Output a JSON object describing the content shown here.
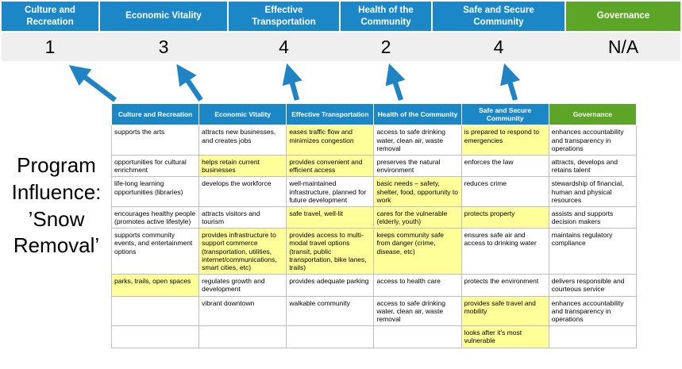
{
  "page": {
    "title": "Program Influence: ’Snow Removal’"
  },
  "summary": {
    "columns": [
      {
        "label": "Culture and Recreation",
        "score": "1"
      },
      {
        "label": "Economic Vitality",
        "score": "3"
      },
      {
        "label": "Effective Transportation",
        "score": "4"
      },
      {
        "label": "Health of the Community",
        "score": "2"
      },
      {
        "label": "Safe and Secure Community",
        "score": "4"
      },
      {
        "label": "Governance",
        "score": "N/A"
      }
    ]
  },
  "matrix": {
    "headers": [
      "Culture and Recreation",
      "Economic Vitality",
      "Effective Transportation",
      "Health of the Community",
      "Safe and Secure Community",
      "Governance"
    ],
    "rows": [
      [
        {
          "t": "supports the arts",
          "h": false
        },
        {
          "t": "attracts new businesses, and creates jobs",
          "h": false
        },
        {
          "t": "eases traffic flow and minimizes congestion",
          "h": true
        },
        {
          "t": "access to safe drinking water, clean air, waste removal",
          "h": false
        },
        {
          "t": "is prepared to respond to emergencies",
          "h": true
        },
        {
          "t": "enhances accountability and transparency in operations",
          "h": false
        }
      ],
      [
        {
          "t": "opportunities for cultural enrichment",
          "h": false
        },
        {
          "t": "helps retain current businesses",
          "h": true
        },
        {
          "t": "provides convenient and efficient access",
          "h": true
        },
        {
          "t": "preserves the natural environment",
          "h": false
        },
        {
          "t": "enforces the law",
          "h": false
        },
        {
          "t": "attracts, develops and retains talent",
          "h": false
        }
      ],
      [
        {
          "t": "life-long learning opportunities (libraries)",
          "h": false
        },
        {
          "t": "develops the workforce",
          "h": false
        },
        {
          "t": "well-maintained infrastructure, planned for future development",
          "h": false
        },
        {
          "t": "basic needs – safety, shelter, food, opportunity to work",
          "h": true
        },
        {
          "t": "reduces crime",
          "h": false
        },
        {
          "t": "stewardship of financial, human and physical resources",
          "h": false
        }
      ],
      [
        {
          "t": "encourages healthy people (promotes active lifestyle)",
          "h": false
        },
        {
          "t": "attracts visitors and tourism",
          "h": false
        },
        {
          "t": "safe travel, well-lit",
          "h": true
        },
        {
          "t": "cares for the vulnerable (elderly, youth)",
          "h": true
        },
        {
          "t": "protects property",
          "h": true
        },
        {
          "t": "assists and supports decision makers",
          "h": false
        }
      ],
      [
        {
          "t": "supports community events, and entertainment options",
          "h": false
        },
        {
          "t": "provides infrastructure to support commerce (transportation, utilities, internet/communications, smart cities, etc)",
          "h": true
        },
        {
          "t": "provides access to multi-modal travel options (transit, public transportation, bike lanes, trails)",
          "h": true
        },
        {
          "t": "keeps community safe from danger (crime, disease, etc)",
          "h": true
        },
        {
          "t": "ensures safe air and access to drinking water",
          "h": false
        },
        {
          "t": "maintains regulatory compliance",
          "h": false
        }
      ],
      [
        {
          "t": "parks, trails, open spaces",
          "h": true
        },
        {
          "t": "regulates growth and development",
          "h": false
        },
        {
          "t": "provides adequate parking",
          "h": false
        },
        {
          "t": "access to health care",
          "h": false
        },
        {
          "t": "protects the environment",
          "h": false
        },
        {
          "t": "delivers responsible and courteous service",
          "h": false
        }
      ],
      [
        {
          "t": "",
          "h": false
        },
        {
          "t": "vibrant downtown",
          "h": false
        },
        {
          "t": "walkable community",
          "h": false
        },
        {
          "t": "access to safe drinking water, clean air, waste removal",
          "h": false
        },
        {
          "t": "provides safe travel and mobility",
          "h": true
        },
        {
          "t": "enhances accountability and transparency in operations",
          "h": false
        }
      ],
      [
        {
          "t": "",
          "h": false
        },
        {
          "t": "",
          "h": false
        },
        {
          "t": "",
          "h": false
        },
        {
          "t": "",
          "h": false
        },
        {
          "t": "looks after it's most vulnerable",
          "h": true
        },
        {
          "t": "",
          "h": false
        }
      ]
    ]
  },
  "colors": {
    "header_blue": "#1B87C6",
    "header_green": "#5CA527",
    "highlight_yellow": "#FFFF99",
    "score_bg": "#EFEFEF",
    "arrow_blue": "#1F83C4",
    "table_border": "#BFBFBF"
  }
}
